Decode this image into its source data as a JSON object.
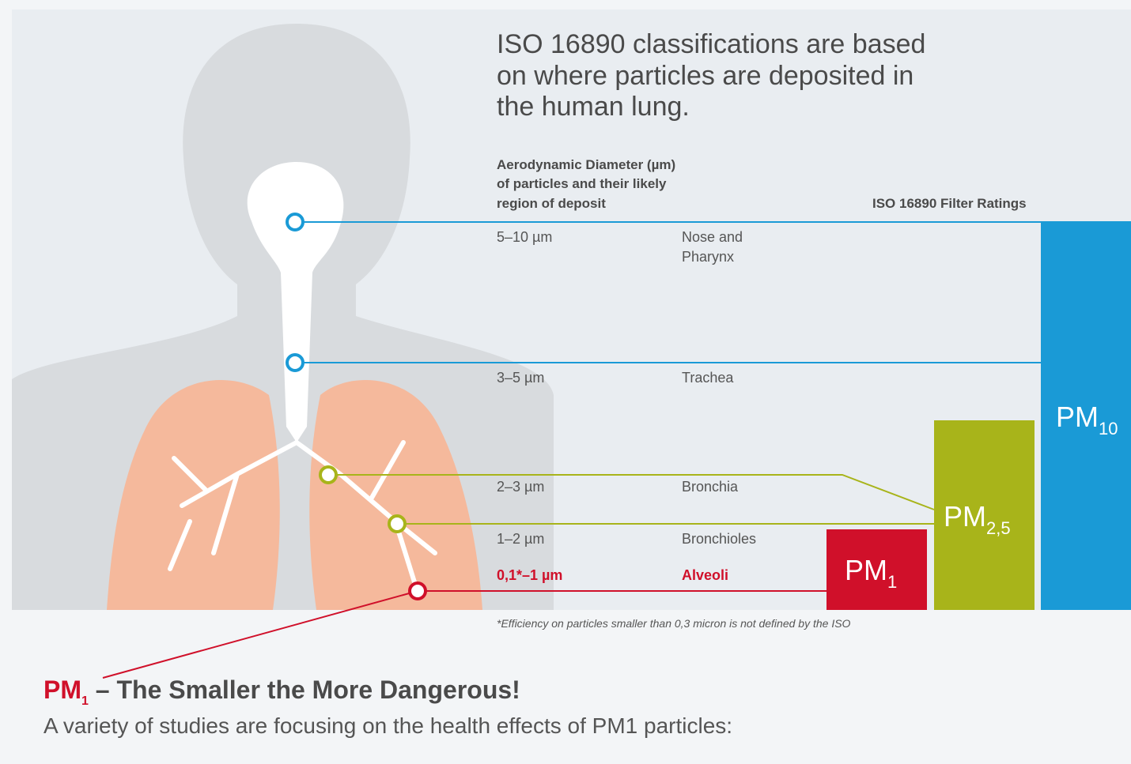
{
  "intro": [
    "ISO 16890 classifications are based",
    "on where particles are deposited in",
    "the human lung."
  ],
  "column_heading": [
    "Aerodynamic Diameter (µm)",
    "of particles and their likely",
    "region of deposit"
  ],
  "ratings_heading": "ISO 16890 Filter Ratings",
  "rows": [
    {
      "size": "5–10 µm",
      "region": [
        "Nose and",
        "Pharynx"
      ]
    },
    {
      "size": "3–5 µm",
      "region": [
        "Trachea"
      ]
    },
    {
      "size": "2–3 µm",
      "region": [
        "Bronchia"
      ]
    },
    {
      "size": "1–2 µm",
      "region": [
        "Bronchioles"
      ]
    },
    {
      "size": "0,1*–1 µm",
      "region": [
        "Alveoli"
      ]
    }
  ],
  "ratings": [
    {
      "main": "PM",
      "sub": "1"
    },
    {
      "main": "PM",
      "sub": "2,5"
    },
    {
      "main": "PM",
      "sub": "10"
    }
  ],
  "footnote": "*Efficiency on particles smaller than 0,3 micron is not defined by the ISO",
  "section": {
    "title_pm": "PM",
    "title_sub": "1",
    "title_rest": " – The Smaller the More Dangerous!",
    "text": "A variety of studies are focusing on the health effects of PM1 particles:"
  }
}
